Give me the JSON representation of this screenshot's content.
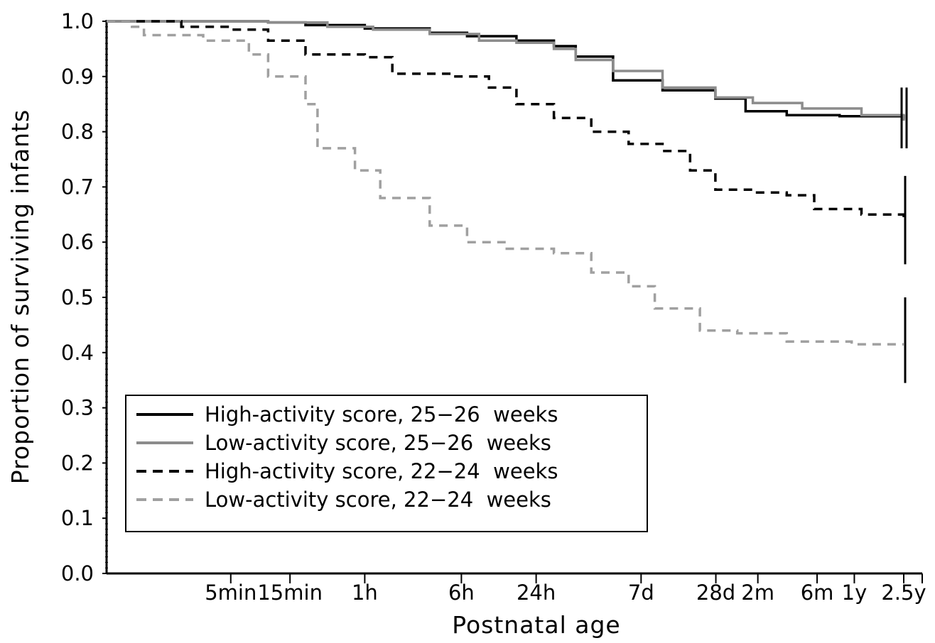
{
  "chart_data": {
    "type": "line",
    "title": "",
    "xlabel": "Postnatal age",
    "ylabel": "Proportion of surviving infants",
    "ylim": [
      0.0,
      1.0
    ],
    "x_scale": "log",
    "grid": false,
    "legend_position": "bottom-left",
    "x_ticks": [
      {
        "label": "5min",
        "minutes": 5
      },
      {
        "label": "15min",
        "minutes": 15
      },
      {
        "label": "1h",
        "minutes": 60
      },
      {
        "label": "6h",
        "minutes": 360
      },
      {
        "label": "24h",
        "minutes": 1440
      },
      {
        "label": "7d",
        "minutes": 10080
      },
      {
        "label": "28d",
        "minutes": 40320
      },
      {
        "label": "2m",
        "minutes": 87840
      },
      {
        "label": "6m",
        "minutes": 263520
      },
      {
        "label": "1y",
        "minutes": 525600
      },
      {
        "label": "2.5y",
        "minutes": 1314000
      }
    ],
    "y_ticks": [
      "0.0",
      "0.1",
      "0.2",
      "0.3",
      "0.4",
      "0.5",
      "0.6",
      "0.7",
      "0.8",
      "0.9",
      "1.0"
    ],
    "series": [
      {
        "name": "High-activity score, 25−26  weeks",
        "color": "#000000",
        "dash": "solid",
        "points": [
          [
            0.5,
            1.0
          ],
          [
            1,
            1.0
          ],
          [
            10,
            0.998
          ],
          [
            20,
            0.993
          ],
          [
            60,
            0.987
          ],
          [
            200,
            0.979
          ],
          [
            400,
            0.973
          ],
          [
            1000,
            0.965
          ],
          [
            2000,
            0.955
          ],
          [
            3000,
            0.936
          ],
          [
            6000,
            0.893
          ],
          [
            15000,
            0.875
          ],
          [
            40000,
            0.86
          ],
          [
            70000,
            0.837
          ],
          [
            150000,
            0.83
          ],
          [
            400000,
            0.828
          ],
          [
            1314000,
            0.823
          ]
        ],
        "ci_low": 0.77,
        "ci_high": 0.88
      },
      {
        "name": "Low-activity score, 25−26  weeks",
        "color": "#8c8c8c",
        "dash": "solid",
        "points": [
          [
            0.5,
            1.0
          ],
          [
            1,
            1.0
          ],
          [
            10,
            0.998
          ],
          [
            30,
            0.99
          ],
          [
            70,
            0.985
          ],
          [
            200,
            0.977
          ],
          [
            500,
            0.965
          ],
          [
            1000,
            0.961
          ],
          [
            2000,
            0.95
          ],
          [
            3000,
            0.93
          ],
          [
            6000,
            0.91
          ],
          [
            15000,
            0.88
          ],
          [
            40000,
            0.862
          ],
          [
            80000,
            0.852
          ],
          [
            200000,
            0.842
          ],
          [
            600000,
            0.83
          ],
          [
            1314000,
            0.82
          ]
        ],
        "ci_low": 0.77,
        "ci_high": 0.88
      },
      {
        "name": "High-activity score, 22−24  weeks",
        "color": "#000000",
        "dash": "dashed",
        "points": [
          [
            0.5,
            1.0
          ],
          [
            1,
            1.0
          ],
          [
            2,
            0.99
          ],
          [
            5,
            0.985
          ],
          [
            10,
            0.965
          ],
          [
            20,
            0.94
          ],
          [
            60,
            0.935
          ],
          [
            100,
            0.905
          ],
          [
            300,
            0.9
          ],
          [
            600,
            0.88
          ],
          [
            1000,
            0.85
          ],
          [
            2000,
            0.825
          ],
          [
            4000,
            0.8
          ],
          [
            8000,
            0.778
          ],
          [
            15000,
            0.765
          ],
          [
            25000,
            0.73
          ],
          [
            40000,
            0.695
          ],
          [
            80000,
            0.69
          ],
          [
            150000,
            0.685
          ],
          [
            250000,
            0.66
          ],
          [
            600000,
            0.65
          ],
          [
            1314000,
            0.635
          ]
        ],
        "ci_low": 0.56,
        "ci_high": 0.72
      },
      {
        "name": "Low-activity score, 22−24  weeks",
        "color": "#a0a0a0",
        "dash": "dashed",
        "points": [
          [
            0.5,
            1.0
          ],
          [
            0.8,
            0.99
          ],
          [
            1,
            0.975
          ],
          [
            3,
            0.965
          ],
          [
            7,
            0.94
          ],
          [
            10,
            0.9
          ],
          [
            20,
            0.85
          ],
          [
            25,
            0.77
          ],
          [
            50,
            0.73
          ],
          [
            80,
            0.68
          ],
          [
            200,
            0.63
          ],
          [
            400,
            0.6
          ],
          [
            800,
            0.588
          ],
          [
            2000,
            0.58
          ],
          [
            4000,
            0.545
          ],
          [
            8000,
            0.52
          ],
          [
            13000,
            0.48
          ],
          [
            30000,
            0.44
          ],
          [
            60000,
            0.435
          ],
          [
            150000,
            0.42
          ],
          [
            500000,
            0.415
          ],
          [
            1314000,
            0.415
          ]
        ],
        "ci_low": 0.345,
        "ci_high": 0.5
      }
    ]
  }
}
